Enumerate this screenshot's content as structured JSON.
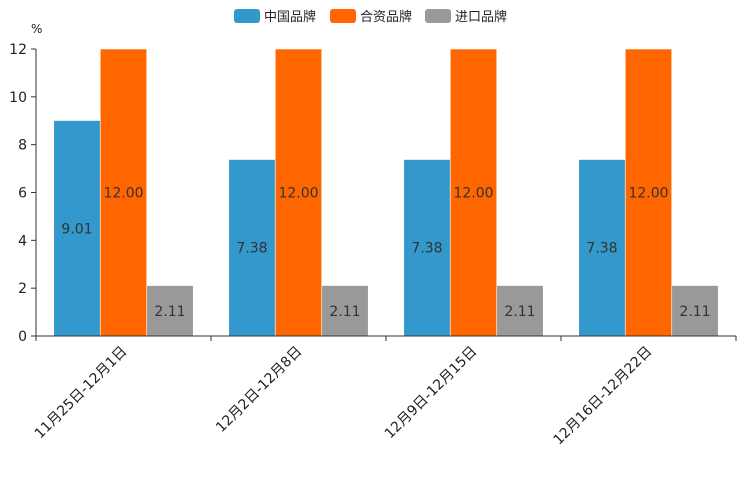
{
  "chart_data": {
    "type": "bar",
    "title": "",
    "ylabel": "%",
    "xlabel": "",
    "ylim": [
      0,
      12
    ],
    "yticks": [
      0,
      2,
      4,
      6,
      8,
      10,
      12
    ],
    "categories": [
      "11月25日-12月1日",
      "12月2日-12月8日",
      "12月9日-12月15日",
      "12月16日-12月22日"
    ],
    "series": [
      {
        "name": "中国品牌",
        "color": "#3399CC",
        "values": [
          9.01,
          7.38,
          7.38,
          7.38
        ],
        "labels": [
          "9.01",
          "7.38",
          "7.38",
          "7.38"
        ]
      },
      {
        "name": "合资品牌",
        "color": "#FF6600",
        "values": [
          12.0,
          12.0,
          12.0,
          12.0
        ],
        "labels": [
          "12.00",
          "12.00",
          "12.00",
          "12.00"
        ]
      },
      {
        "name": "进口品牌",
        "color": "#999999",
        "values": [
          2.11,
          2.11,
          2.11,
          2.11
        ],
        "labels": [
          "2.11",
          "2.11",
          "2.11",
          "2.11"
        ]
      }
    ],
    "legend_position": "top-center",
    "grid": false
  }
}
